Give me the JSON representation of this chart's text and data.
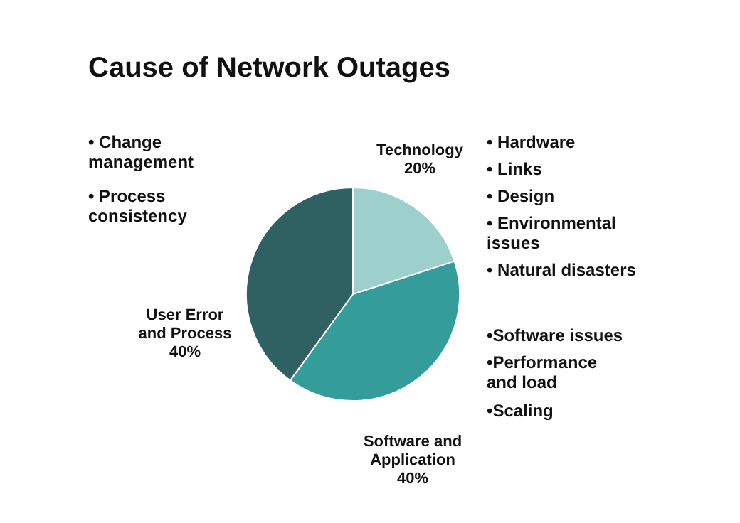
{
  "chart_data": {
    "type": "pie",
    "title": "Cause of Network Outages",
    "categories": [
      "Technology",
      "Software and Application",
      "User Error and Process"
    ],
    "values": [
      20,
      40,
      40
    ],
    "colors": [
      "#9dcfcd",
      "#349d9a",
      "#2f6163"
    ],
    "value_labels": [
      "20%",
      "40%",
      "40%"
    ],
    "annotations": [
      "• Change management",
      "• Process consistency",
      "• Hardware",
      "• Links",
      "• Design",
      "• Environmental issues",
      "• Natural disasters",
      "•Software issues",
      "•Performance and load",
      "•Scaling"
    ]
  }
}
